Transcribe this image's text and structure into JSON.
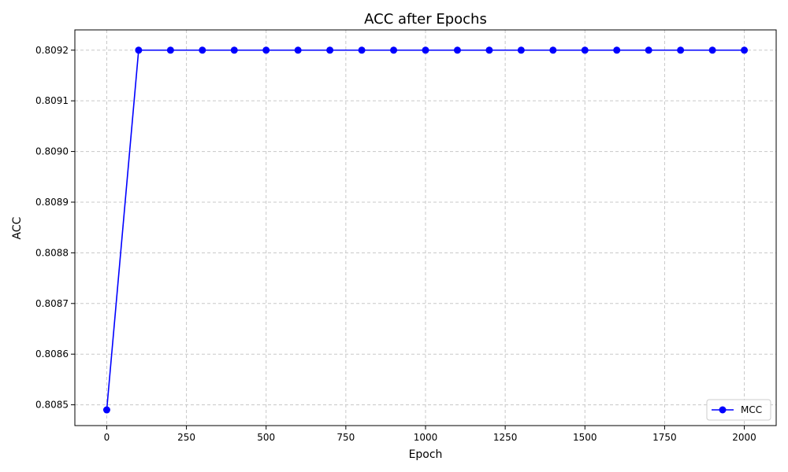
{
  "chart_data": {
    "type": "line",
    "title": "ACC after Epochs",
    "xlabel": "Epoch",
    "ylabel": "ACC",
    "xlim": [
      -100,
      2100
    ],
    "ylim": [
      0.808459,
      0.80924
    ],
    "xticks": [
      0,
      250,
      500,
      750,
      1000,
      1250,
      1500,
      1750,
      2000
    ],
    "xtick_labels": [
      "0",
      "250",
      "500",
      "750",
      "1000",
      "1250",
      "1500",
      "1750",
      "2000"
    ],
    "yticks": [
      0.8085,
      0.8086,
      0.8087,
      0.8088,
      0.8089,
      0.809,
      0.8091,
      0.8092
    ],
    "ytick_labels": [
      "0.8085",
      "0.8086",
      "0.8087",
      "0.8088",
      "0.8089",
      "0.8090",
      "0.8091",
      "0.8092"
    ],
    "grid": true,
    "legend_position": "bottom-right",
    "series": [
      {
        "name": "MCC",
        "color": "#0000ff",
        "marker": "circle",
        "x": [
          0,
          100,
          200,
          300,
          400,
          500,
          600,
          700,
          800,
          900,
          1000,
          1100,
          1200,
          1300,
          1400,
          1500,
          1600,
          1700,
          1800,
          1900,
          2000
        ],
        "y": [
          0.80849,
          0.8092,
          0.8092,
          0.8092,
          0.8092,
          0.8092,
          0.8092,
          0.8092,
          0.8092,
          0.8092,
          0.8092,
          0.8092,
          0.8092,
          0.8092,
          0.8092,
          0.8092,
          0.8092,
          0.8092,
          0.8092,
          0.8092,
          0.8092
        ]
      }
    ]
  }
}
